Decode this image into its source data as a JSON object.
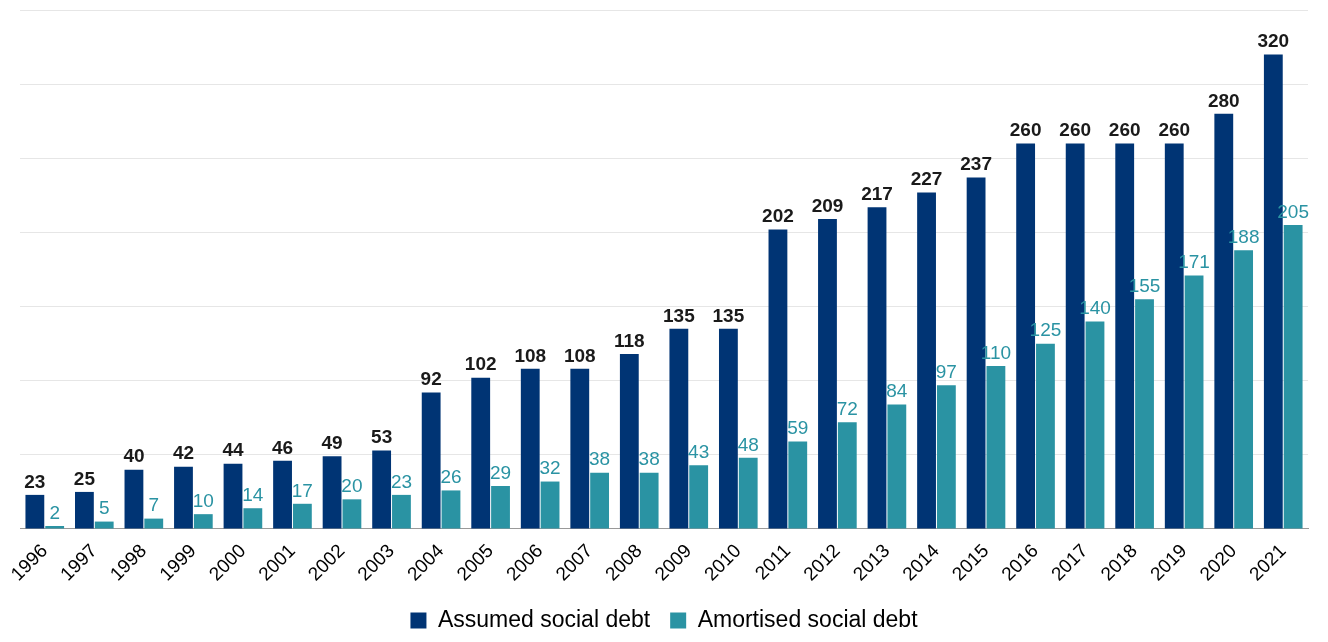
{
  "chart_data": {
    "type": "bar",
    "categories": [
      "1996",
      "1997",
      "1998",
      "1999",
      "2000",
      "2001",
      "2002",
      "2003",
      "2004",
      "2005",
      "2006",
      "2007",
      "2008",
      "2009",
      "2010",
      "2011",
      "2012",
      "2013",
      "2014",
      "2015",
      "2016",
      "2017",
      "2018",
      "2019",
      "2020",
      "2021"
    ],
    "series": [
      {
        "name": "Assumed social debt",
        "color": "#003474",
        "values": [
          23,
          25,
          40,
          42,
          44,
          46,
          49,
          53,
          92,
          102,
          108,
          108,
          118,
          135,
          135,
          202,
          209,
          217,
          227,
          237,
          260,
          260,
          260,
          260,
          280,
          320
        ]
      },
      {
        "name": "Amortised social debt",
        "color": "#2a93a3",
        "values": [
          2,
          5,
          7,
          10,
          14,
          17,
          20,
          23,
          26,
          29,
          32,
          38,
          38,
          43,
          48,
          59,
          72,
          84,
          97,
          110,
          125,
          140,
          155,
          171,
          188,
          205
        ]
      }
    ],
    "ylim": [
      0,
      350
    ],
    "yticks": [
      {
        "value": 0,
        "label": null
      },
      {
        "value": 50,
        "label": null
      },
      {
        "value": 100,
        "label": null
      },
      {
        "value": 150,
        "label": null
      },
      {
        "value": 200,
        "label": null
      },
      {
        "value": 250,
        "label": null
      },
      {
        "value": 300,
        "label": null
      },
      {
        "value": 350,
        "label": null
      }
    ],
    "tick_labels": "x",
    "grid": "y",
    "legend": "bottom",
    "data_labels": true
  }
}
